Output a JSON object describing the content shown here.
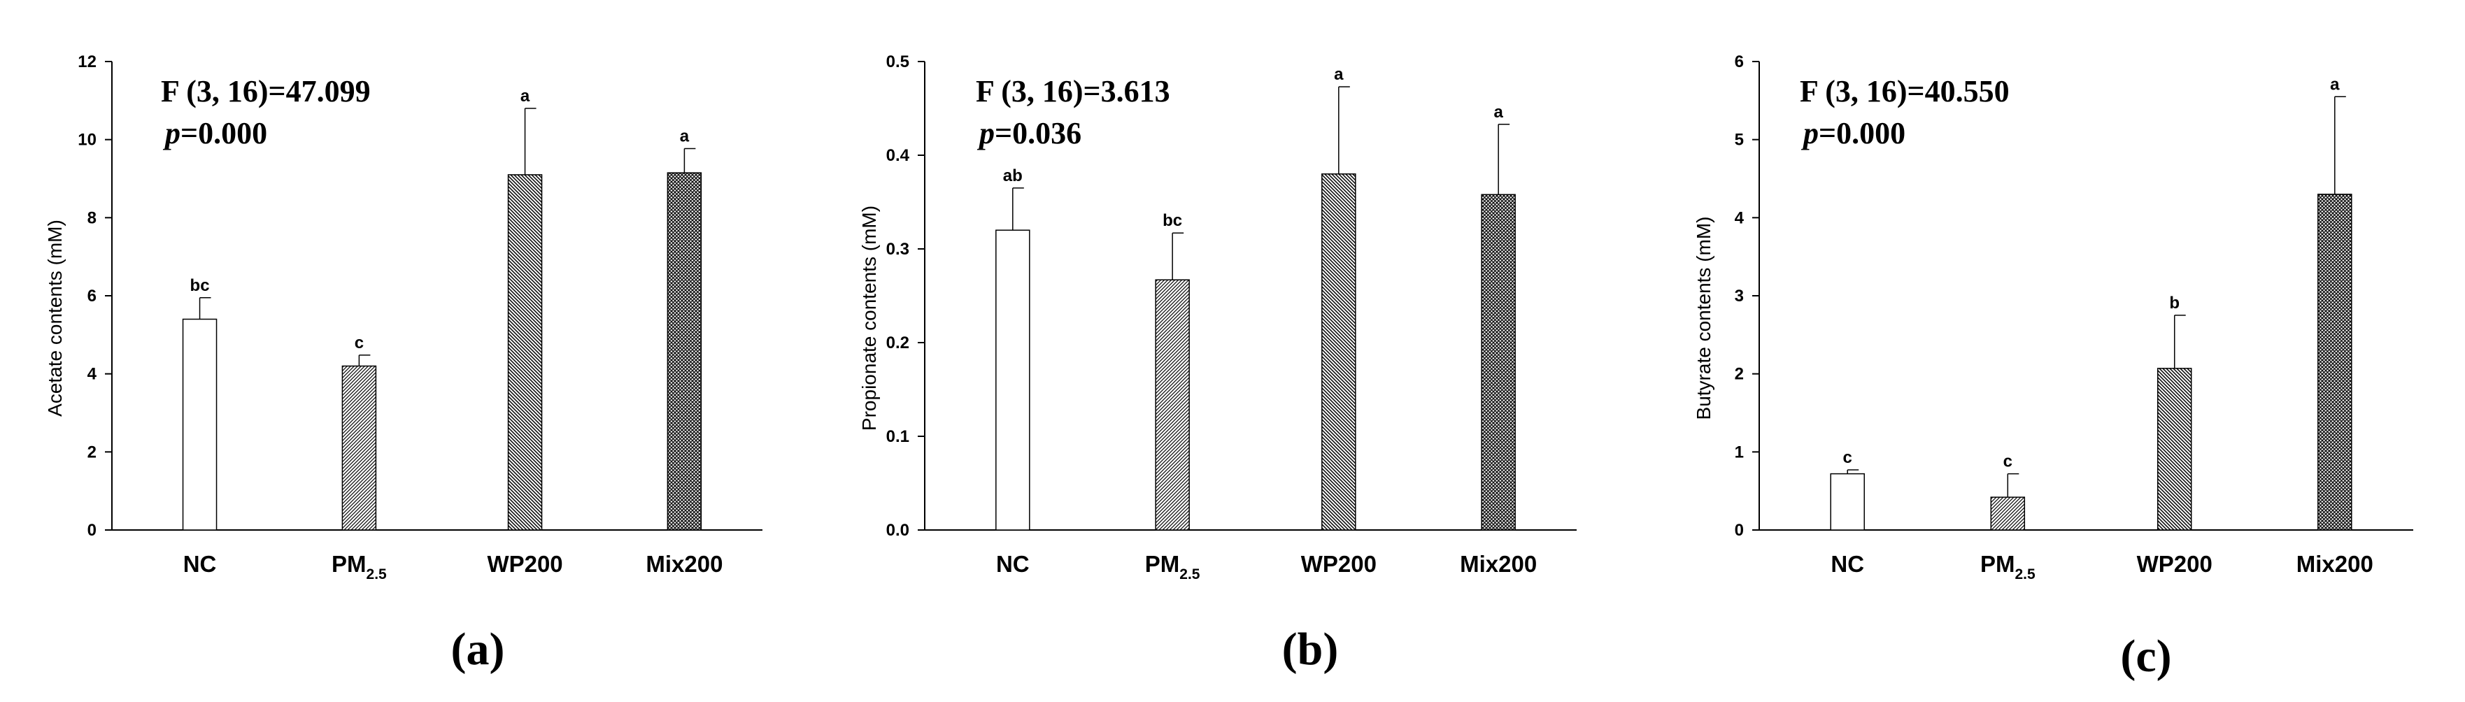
{
  "figure": {
    "panel_labels": [
      "(a)",
      "(b)",
      "(c)"
    ]
  },
  "chart_data": [
    {
      "type": "bar",
      "panel": "(a)",
      "title": "",
      "xlabel": "",
      "ylabel": "Acetate contents (mM)",
      "ylim": [
        0,
        12
      ],
      "yticks": [
        0,
        2,
        4,
        6,
        8,
        10,
        12
      ],
      "ytick_labels": [
        "0",
        "2",
        "4",
        "6",
        "8",
        "10",
        "12"
      ],
      "categories": [
        {
          "main": "NC",
          "sub": ""
        },
        {
          "main": "PM",
          "sub": "2.5"
        },
        {
          "main": "WP200",
          "sub": ""
        },
        {
          "main": "Mix200",
          "sub": ""
        }
      ],
      "values": [
        5.4,
        4.2,
        9.1,
        9.15
      ],
      "errors": [
        0.55,
        0.28,
        1.7,
        0.62
      ],
      "letters": [
        "bc",
        "c",
        "a",
        "a"
      ],
      "stat_line": "F (3, 16)=47.099",
      "p_label": "p",
      "p_value": "=0.000"
    },
    {
      "type": "bar",
      "panel": "(b)",
      "title": "",
      "xlabel": "",
      "ylabel": "Propionate contents (mM)",
      "ylim": [
        0,
        0.5
      ],
      "yticks": [
        0,
        0.1,
        0.2,
        0.3,
        0.4,
        0.5
      ],
      "ytick_labels": [
        "0.0",
        "0.1",
        "0.2",
        "0.3",
        "0.4",
        "0.5"
      ],
      "categories": [
        {
          "main": "NC",
          "sub": ""
        },
        {
          "main": "PM",
          "sub": "2.5"
        },
        {
          "main": "WP200",
          "sub": ""
        },
        {
          "main": "Mix200",
          "sub": ""
        }
      ],
      "values": [
        0.32,
        0.267,
        0.38,
        0.358
      ],
      "errors": [
        0.045,
        0.05,
        0.093,
        0.075
      ],
      "letters": [
        "ab",
        "bc",
        "a",
        "a"
      ],
      "stat_line": "F (3, 16)=3.613",
      "p_label": "p",
      "p_value": "=0.036"
    },
    {
      "type": "bar",
      "panel": "(c)",
      "title": "",
      "xlabel": "",
      "ylabel": "Butyrate contents (mM)",
      "ylim": [
        0,
        6
      ],
      "yticks": [
        0,
        1,
        2,
        3,
        4,
        5,
        6
      ],
      "ytick_labels": [
        "0",
        "1",
        "2",
        "3",
        "4",
        "5",
        "6"
      ],
      "categories": [
        {
          "main": "NC",
          "sub": ""
        },
        {
          "main": "PM",
          "sub": "2.5"
        },
        {
          "main": "WP200",
          "sub": ""
        },
        {
          "main": "Mix200",
          "sub": ""
        }
      ],
      "values": [
        0.72,
        0.42,
        2.07,
        4.3
      ],
      "errors": [
        0.05,
        0.3,
        0.68,
        1.25
      ],
      "letters": [
        "c",
        "c",
        "b",
        "a"
      ],
      "stat_line": "F (3, 16)=40.550",
      "p_label": "p",
      "p_value": "=0.000"
    }
  ]
}
